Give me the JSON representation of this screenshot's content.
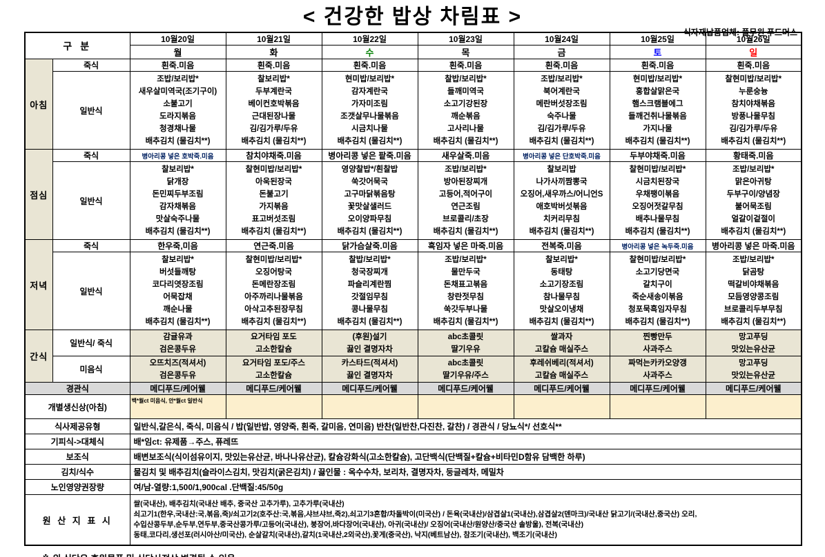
{
  "page": {
    "title": "< 건강한 밥상 차림표 >",
    "supplier": "식자재납품업체: 풀무원 푸드머스",
    "footnote": "※ 위 식단은 후원물품 및 식당사정상 변경될 수 있음."
  },
  "colors": {
    "day_wednesday": "#008000",
    "day_saturday": "#0000ff",
    "day_sunday": "#ff0000",
    "special_porridge_text": "#002060",
    "section_label_bg": "#e9e5d4",
    "tube_feeding_row_bg": "#d9d9d9",
    "birthday_row_bg": "#fcefcd"
  },
  "table": {
    "corner_label": "구 분",
    "dates": [
      "10월20일",
      "10월21일",
      "10월22일",
      "10월23일",
      "10월24일",
      "10월25일",
      "10월26일"
    ],
    "days": [
      "월",
      "화",
      "수",
      "목",
      "금",
      "토",
      "일"
    ],
    "row_labels": {
      "breakfast": "아침",
      "lunch": "점심",
      "dinner": "저녁",
      "snack": "간식",
      "porridge": "죽식",
      "general": "일반식",
      "general_porridge": "일반식/ 죽식",
      "mieum": "미음식",
      "gyeongwan": "경관식",
      "birthday": "개별생신상(아침)"
    },
    "breakfast": {
      "porridge": [
        "흰죽.미음",
        "흰죽.미음",
        "흰죽.미음",
        "흰죽.미음",
        "흰죽.미음",
        "흰죽.미음",
        "흰죽.미음"
      ],
      "general": [
        [
          "조밥/보리밥*",
          "새우살미역국(조기구이)",
          "소불고기",
          "도라지볶음",
          "청경채나물",
          "배추김치 (물김치**)"
        ],
        [
          "찰보리밥*",
          "두부계란국",
          "베이컨호박볶음",
          "근대된장나물",
          "김/김가루/두유",
          "배추김치 (물김치**)"
        ],
        [
          "현미밥/보리밥*",
          "감자계란국",
          "가자미조림",
          "조갯살무나물볶음",
          "시금치나물",
          "배추김치 (물김치**)"
        ],
        [
          "찰밥/보리밥*",
          "들깨미역국",
          "소고기강된장",
          "깨순볶음",
          "고사리나물",
          "배추김치 (물김치**)"
        ],
        [
          "조밥/보리밥*",
          "북어계란국",
          "메란버섯장조림",
          "숙주나물",
          "김/김가루/두유",
          "배추김치 (물김치**)"
        ],
        [
          "현미밥/보리밥*",
          "홍합살맑은국",
          "햄스크램블에그",
          "들깨건취나물볶음",
          "가지나물",
          "배추김치 (물김치**)"
        ],
        [
          "찰현미밥/보리밥*",
          "누룬숭늉",
          "참치야채볶음",
          "방풍나물무침",
          "김/김가루/두유",
          "배추김치 (물김치**)"
        ]
      ]
    },
    "lunch": {
      "porridge": [
        "병아리콩 넣은 호박죽.미음",
        "참치야채죽.미음",
        "병아리콩 넣은 팥죽.미음",
        "새우살죽.미음",
        "병아리콩 넣은 단호박죽.미음",
        "두부야채죽.미음",
        "황태죽.미음"
      ],
      "general": [
        [
          "찰보리밥*",
          "닭개장",
          "돈민찌두부조림",
          "감자채볶음",
          "맛살숙주나물",
          "배추김치 (물김치**)"
        ],
        [
          "찰현미밥/보리밥*",
          "아욱된장국",
          "돈불고기",
          "가지볶음",
          "표고버섯조림",
          "배추김치 (물김치**)"
        ],
        [
          "영양찰밥*/흰찰밥",
          "쑥갓어묵국",
          "고구마닭볶음탕",
          "꽃맛살샐러드",
          "오이양파무침",
          "배추김치 (물김치**)"
        ],
        [
          "조밥/보리밥*",
          "방아된장찌개",
          "고등어,적어구이",
          "연근조림",
          "브로콜리/초장",
          "배추김치 (물김치**)"
        ],
        [
          "찰보리밥",
          "나가사끼짬뽕국",
          "오징어,새우까스/어니언S",
          "애호박버섯볶음",
          "치커리무침",
          "배추김치 (물김치**)"
        ],
        [
          "찰현미밥/보리밥*",
          "시금치된장국",
          "우채팽이볶음",
          "오징어젓갈무침",
          "배추나물무침",
          "배추김치 (물김치**)"
        ],
        [
          "조밥/보리밥*",
          "맑은아귀탕",
          "두부구이/양념장",
          "불어묵조림",
          "얼갈이겉절이",
          "배추김치 (물김치**)"
        ]
      ]
    },
    "dinner": {
      "porridge": [
        "한우죽,미음",
        "연근죽.미음",
        "닭가슴살죽.미음",
        "흑임자 넣은 마죽.미음",
        "전복죽.미음",
        "병아리콩 넣은 녹두죽.미음",
        "병아리콩 넣은 마죽.미음"
      ],
      "general": [
        [
          "찰보리밥*",
          "버섯들깨탕",
          "코다리엿장조림",
          "어묵잡채",
          "깨순나물",
          "배추김치 (물김치**)"
        ],
        [
          "찰현미밥/보리밥*",
          "오징어탕국",
          "돈메란장조림",
          "아주까리나물볶음",
          "아삭고추된장무침",
          "배추김치 (물김치**)"
        ],
        [
          "찰밥/보리밥*",
          "청국장찌개",
          "파슬리계란찜",
          "갓절임무침",
          "콩나물무침",
          "배추김치 (물김치**)"
        ],
        [
          "조밥/보리밥*",
          "물만두국",
          "돈채표고볶음",
          "창란젓무침",
          "쑥갓두부나물",
          "배추김치 (물김치**)"
        ],
        [
          "찰보리밥*",
          "동태탕",
          "소고기장조림",
          "참나물무침",
          "맛살오이냉채",
          "배추김치 (물김치**)"
        ],
        [
          "찰현미밥/보리밥*",
          "소고기당면국",
          "갈치구이",
          "죽순새송이볶음",
          "청포묵흑임자무침",
          "배추김치 (물김치**)"
        ],
        [
          "조밥/보리밥*",
          "닭곰탕",
          "떡갈비야채볶음",
          "모듬영양콩조림",
          "브로콜리두부무침",
          "배추김치 (물김치**)"
        ]
      ]
    },
    "snack": {
      "general": [
        [
          "감귤유과",
          "검은콩두유"
        ],
        [
          "요거타임 포도",
          "고소한칼슘"
        ],
        [
          "(후원)설기",
          "끓인 결명자차"
        ],
        [
          "abc초콜릿",
          "딸기우유"
        ],
        [
          "쌀과자",
          "고칼슘 매실주스"
        ],
        [
          "찐빵만두",
          "사과주스"
        ],
        [
          "망고푸딩",
          "맛있는유산균"
        ]
      ],
      "mieum": [
        [
          "오뜨치즈(적셔서)",
          "검은콩두유"
        ],
        [
          "요거타임 포도/주스",
          "고소한칼슘"
        ],
        [
          "카스타드(적셔서)",
          "끓인 결명자차"
        ],
        [
          "abc초콜릿",
          "딸기우유/주스"
        ],
        [
          "후레쉬베리(적셔서)",
          "고칼슘 매실주스"
        ],
        [
          "짜먹는카카오양갱",
          "사과주스"
        ],
        [
          "망고푸딩",
          "맛있는유산균"
        ]
      ]
    },
    "gyeongwan": [
      "메디푸드/케어웰",
      "메디푸드/케어웰",
      "메디푸드/케어웰",
      "메디푸드/케어웰",
      "메디푸드/케어웰",
      "메디푸드/케어웰",
      "메디푸드/케어웰"
    ],
    "birthday": [
      "백*월ct 미음식, 안*월ct 일반식",
      "",
      "",
      "",
      "",
      "",
      ""
    ],
    "info_rows": [
      {
        "label": "식사제공유형",
        "text": "일반식,갈은식, 죽식, 미음식 / 밥(일반밥, 영양죽, 흰죽, 갈미음, 연미음) 반찬(일반찬,다진찬, 갈찬) / 경관식 / 당뇨식*/ 선호식**"
      },
      {
        "label": "기피식->대체식",
        "text": "배*임ct: 유제품→주스, 퓨레뜨"
      },
      {
        "label": "보조식",
        "text": "배변보조식(식이섬유이지, 맛있는유산균, 바나나유산균), 칼슘강화식(고소한칼슘), 고단백식(단백질+칼슘+비타민D함유 담백한 하루)"
      },
      {
        "label": "김치/식수",
        "text": "물김치 및 배추김치(슬라이스김치, 맛김치(굵은김치) / 끓인물 : 옥수수차, 보리차, 결명자차, 둥글레차, 메밀차"
      },
      {
        "label": "노인영양권장량",
        "text": "여/남-열량:1,500/1,900cal .단백질:45/50g"
      }
    ],
    "origin": {
      "label": "원 산 지 표 시",
      "lines": [
        "쌀(국내산), 배추김치(국내산 배추, 중국산 고추가루), 고추가루(국내산)",
        "쇠고기1(한우,국내산:국,볶음,죽)/쇠고기2(호주산:국,볶음,샤브샤브,죽2),쇠고기3혼합/차돌박이(미국산) / 돈육(국내산)/삼겹살1(국내산),삼겹살2(덴마크)/국내산 닭고기/(국내산,중국산) 오리,",
        "수입산콩두부,순두부,연두부,중국산콩가루/고등어(국내산), 붕장어,바다장어(국내산), 아귀(국내산)/ 오징어(국내산/원양산/중국산 솔방울), 전복(국내산)",
        "동태,코다리,생선포(러시아산/미국산), 순살갈치(국내산),갈치(1국내산,2외국산),꽃게(중국산), 낙지(베트남산), 참조기(국내산), 백조기(국내산)"
      ]
    }
  }
}
